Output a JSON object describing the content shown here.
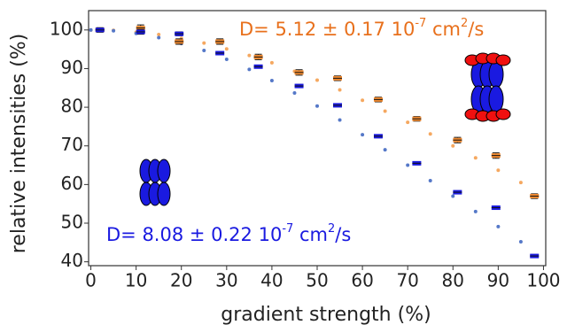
{
  "chart_data": {
    "type": "errorbar",
    "x_label": "gradient strength (%)",
    "y_label": "relative intensities (%)",
    "xlim": [
      -0.5,
      100.5
    ],
    "ylim": [
      39,
      105
    ],
    "xticks": [
      0,
      10,
      20,
      30,
      40,
      50,
      60,
      70,
      80,
      90,
      100
    ],
    "yticks": [
      40,
      50,
      60,
      70,
      80,
      90,
      100
    ],
    "x": [
      2,
      11,
      19.5,
      28.5,
      37,
      46,
      54.5,
      63.5,
      72,
      81,
      89.5,
      98
    ],
    "series": [
      {
        "color": "#f08a30",
        "values": [
          100,
          100.5,
          97,
          97,
          93,
          89,
          87.5,
          82,
          77,
          71.5,
          67.5,
          57
        ],
        "errors": [
          0.6,
          0.8,
          0.7,
          0.7,
          0.7,
          0.7,
          0.6,
          0.6,
          0.6,
          0.7,
          0.7,
          0.6
        ]
      },
      {
        "color": "#1a1ae0",
        "values": [
          100,
          99.5,
          99,
          94,
          90.5,
          85.5,
          80.5,
          72.5,
          65.5,
          58,
          54,
          41.5
        ],
        "errors": [
          0.5,
          0.6,
          0.5,
          0.4,
          0.4,
          0.4,
          0.4,
          0.4,
          0.4,
          0.4,
          0.4,
          0.4
        ]
      }
    ],
    "fits": [
      {
        "color": "#f5a860",
        "x": [
          0,
          5,
          10,
          15,
          20,
          25,
          30,
          35,
          40,
          45,
          50,
          55,
          60,
          65,
          70,
          75,
          80,
          85,
          90,
          95
        ],
        "values": [
          100,
          99.9,
          99.4,
          98.8,
          97.8,
          96.6,
          95.1,
          93.4,
          91.5,
          89.3,
          87,
          84.5,
          81.8,
          79,
          76.1,
          73.1,
          70,
          66.9,
          63.7,
          60.5
        ]
      },
      {
        "color": "#5578c8",
        "x": [
          0,
          5,
          10,
          15,
          20,
          25,
          30,
          35,
          40,
          45,
          50,
          55,
          60,
          65,
          70,
          75,
          80,
          85,
          90,
          95
        ],
        "values": [
          100,
          99.8,
          99.1,
          98,
          96.5,
          94.7,
          92.4,
          89.8,
          86.9,
          83.7,
          80.3,
          76.7,
          72.9,
          69,
          65,
          61,
          57,
          53,
          49.1,
          45.2
        ]
      }
    ],
    "annotations": [
      {
        "color": "#e8701c",
        "parts": [
          {
            "text": "D= 5.12 ±  0.17 10"
          },
          {
            "text": "-7",
            "sup": true
          },
          {
            "text": " cm"
          },
          {
            "text": "2",
            "sup": true
          },
          {
            "text": "/s"
          }
        ]
      },
      {
        "color": "#1a1ae0",
        "parts": [
          {
            "text": "D= 8.08 ±  0.22 10"
          },
          {
            "text": "-7",
            "sup": true
          },
          {
            "text": " cm"
          },
          {
            "text": "2",
            "sup": true
          },
          {
            "text": "/s"
          }
        ]
      }
    ]
  }
}
